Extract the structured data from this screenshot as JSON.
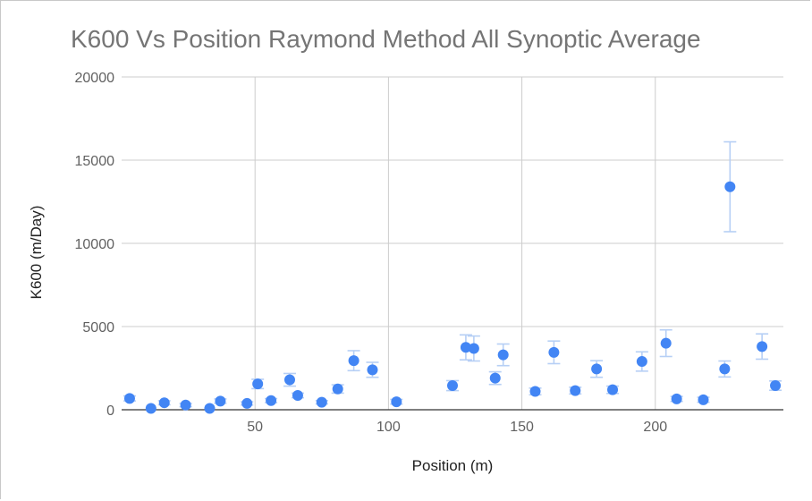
{
  "chart_data": {
    "type": "scatter",
    "title": "K600 Vs Position Raymond Method All Synoptic Average",
    "xlabel": "Position (m)",
    "ylabel": "K600 (m/Day)",
    "xlim": [
      0,
      248
    ],
    "ylim": [
      0,
      20000
    ],
    "xticks": [
      50,
      100,
      150,
      200
    ],
    "yticks": [
      0,
      5000,
      10000,
      15000,
      20000
    ],
    "grid": true,
    "legend": "none",
    "colors": {
      "point": "#4285f4",
      "errorbar": "#b6cff5",
      "grid": "#cccccc",
      "axis": "#333333"
    },
    "points": [
      {
        "x": 3,
        "y": 680,
        "err": 150
      },
      {
        "x": 11,
        "y": 80,
        "err": 0
      },
      {
        "x": 16,
        "y": 420,
        "err": 120
      },
      {
        "x": 24,
        "y": 280,
        "err": 100
      },
      {
        "x": 33,
        "y": 80,
        "err": 0
      },
      {
        "x": 37,
        "y": 520,
        "err": 130
      },
      {
        "x": 47,
        "y": 380,
        "err": 100
      },
      {
        "x": 51,
        "y": 1550,
        "err": 280
      },
      {
        "x": 56,
        "y": 550,
        "err": 120
      },
      {
        "x": 63,
        "y": 1800,
        "err": 380
      },
      {
        "x": 66,
        "y": 860,
        "err": 140
      },
      {
        "x": 75,
        "y": 450,
        "err": 100
      },
      {
        "x": 81,
        "y": 1250,
        "err": 250
      },
      {
        "x": 87,
        "y": 2950,
        "err": 600
      },
      {
        "x": 94,
        "y": 2400,
        "err": 450
      },
      {
        "x": 103,
        "y": 480,
        "err": 140
      },
      {
        "x": 124,
        "y": 1450,
        "err": 300
      },
      {
        "x": 129,
        "y": 3750,
        "err": 750
      },
      {
        "x": 132,
        "y": 3680,
        "err": 750
      },
      {
        "x": 140,
        "y": 1900,
        "err": 380
      },
      {
        "x": 143,
        "y": 3300,
        "err": 650
      },
      {
        "x": 155,
        "y": 1100,
        "err": 200
      },
      {
        "x": 162,
        "y": 3450,
        "err": 680
      },
      {
        "x": 170,
        "y": 1150,
        "err": 200
      },
      {
        "x": 178,
        "y": 2450,
        "err": 500
      },
      {
        "x": 184,
        "y": 1200,
        "err": 220
      },
      {
        "x": 195,
        "y": 2900,
        "err": 580
      },
      {
        "x": 204,
        "y": 4000,
        "err": 800
      },
      {
        "x": 208,
        "y": 650,
        "err": 150
      },
      {
        "x": 218,
        "y": 600,
        "err": 150
      },
      {
        "x": 226,
        "y": 2450,
        "err": 480
      },
      {
        "x": 228,
        "y": 13400,
        "err": 2700
      },
      {
        "x": 240,
        "y": 3800,
        "err": 760
      },
      {
        "x": 245,
        "y": 1450,
        "err": 280
      }
    ]
  }
}
